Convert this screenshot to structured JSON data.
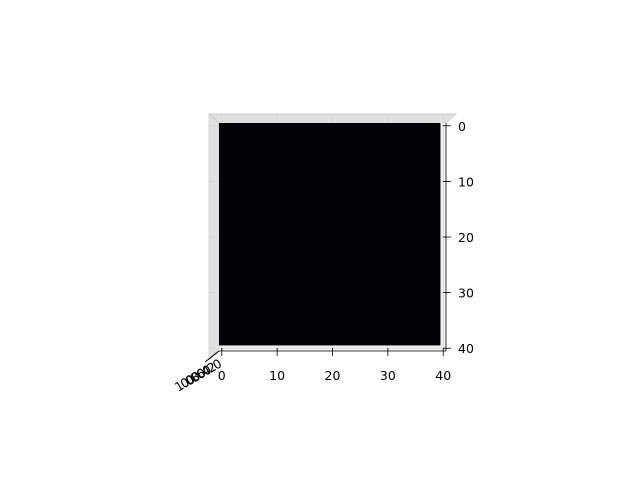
{
  "chart_data": {
    "type": "heatmap",
    "view": "3d-axes-top-down",
    "title": "",
    "xlabel": "",
    "ylabel": "",
    "zlabel": "",
    "x_ticks": [
      0,
      10,
      20,
      30,
      40
    ],
    "y_ticks": [
      0,
      10,
      20,
      30,
      40
    ],
    "z_tick_labels": [
      "0.0",
      "0.2",
      "0.4",
      "0.6",
      "0.8",
      "1.0"
    ],
    "xlim": [
      -0.5,
      40.5
    ],
    "ylim": [
      40.5,
      -0.5
    ],
    "image_extent": {
      "x": [
        0,
        39
      ],
      "y": [
        0,
        39
      ]
    },
    "image_color": "#030307",
    "pane_color": "#f2f2f2",
    "grid": true
  }
}
